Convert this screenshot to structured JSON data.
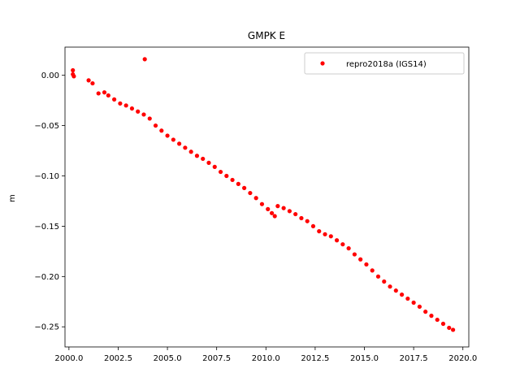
{
  "chart_data": {
    "type": "scatter",
    "title": "GMPK E",
    "xlabel": "",
    "ylabel": "m",
    "xlim": [
      1999.8,
      2020.3
    ],
    "ylim": [
      -0.27,
      0.028
    ],
    "xticks": [
      2000.0,
      2002.5,
      2005.0,
      2007.5,
      2010.0,
      2012.5,
      2015.0,
      2017.5,
      2020.0
    ],
    "xtick_labels": [
      "2000.0",
      "2002.5",
      "2005.0",
      "2007.5",
      "2010.0",
      "2012.5",
      "2015.0",
      "2017.5",
      "2020.0"
    ],
    "yticks": [
      0.0,
      -0.05,
      -0.1,
      -0.15,
      -0.2,
      -0.25
    ],
    "ytick_labels": [
      "0.00",
      "−0.05",
      "−0.10",
      "−0.15",
      "−0.20",
      "−0.25"
    ],
    "grid": false,
    "legend": {
      "placement": "top-right"
    },
    "series": [
      {
        "name": "repro2018a (IGS14)",
        "color": "#ff0000",
        "marker": "circle",
        "points": [
          [
            2000.2,
            0.005
          ],
          [
            2000.2,
            0.001
          ],
          [
            2000.25,
            -0.001
          ],
          [
            2003.85,
            0.016
          ],
          [
            2001.0,
            -0.005
          ],
          [
            2001.2,
            -0.008
          ],
          [
            2001.5,
            -0.018
          ],
          [
            2001.8,
            -0.017
          ],
          [
            2002.0,
            -0.02
          ],
          [
            2002.3,
            -0.024
          ],
          [
            2002.6,
            -0.028
          ],
          [
            2002.9,
            -0.03
          ],
          [
            2003.2,
            -0.033
          ],
          [
            2003.5,
            -0.036
          ],
          [
            2003.8,
            -0.039
          ],
          [
            2004.1,
            -0.043
          ],
          [
            2004.4,
            -0.05
          ],
          [
            2004.7,
            -0.055
          ],
          [
            2005.0,
            -0.06
          ],
          [
            2005.3,
            -0.064
          ],
          [
            2005.6,
            -0.068
          ],
          [
            2005.9,
            -0.072
          ],
          [
            2006.2,
            -0.076
          ],
          [
            2006.5,
            -0.08
          ],
          [
            2006.8,
            -0.083
          ],
          [
            2007.1,
            -0.087
          ],
          [
            2007.4,
            -0.091
          ],
          [
            2007.7,
            -0.096
          ],
          [
            2008.0,
            -0.1
          ],
          [
            2008.3,
            -0.104
          ],
          [
            2008.6,
            -0.108
          ],
          [
            2008.9,
            -0.112
          ],
          [
            2009.2,
            -0.117
          ],
          [
            2009.5,
            -0.122
          ],
          [
            2009.8,
            -0.128
          ],
          [
            2010.1,
            -0.133
          ],
          [
            2010.3,
            -0.137
          ],
          [
            2010.45,
            -0.14
          ],
          [
            2010.6,
            -0.13
          ],
          [
            2010.9,
            -0.132
          ],
          [
            2011.2,
            -0.135
          ],
          [
            2011.5,
            -0.138
          ],
          [
            2011.8,
            -0.142
          ],
          [
            2012.1,
            -0.145
          ],
          [
            2012.4,
            -0.15
          ],
          [
            2012.7,
            -0.155
          ],
          [
            2013.0,
            -0.158
          ],
          [
            2013.3,
            -0.16
          ],
          [
            2013.6,
            -0.164
          ],
          [
            2013.9,
            -0.168
          ],
          [
            2014.2,
            -0.172
          ],
          [
            2014.5,
            -0.178
          ],
          [
            2014.8,
            -0.183
          ],
          [
            2015.1,
            -0.188
          ],
          [
            2015.4,
            -0.194
          ],
          [
            2015.7,
            -0.2
          ],
          [
            2016.0,
            -0.205
          ],
          [
            2016.3,
            -0.21
          ],
          [
            2016.6,
            -0.214
          ],
          [
            2016.9,
            -0.218
          ],
          [
            2017.2,
            -0.222
          ],
          [
            2017.5,
            -0.226
          ],
          [
            2017.8,
            -0.23
          ],
          [
            2018.1,
            -0.235
          ],
          [
            2018.4,
            -0.239
          ],
          [
            2018.7,
            -0.243
          ],
          [
            2019.0,
            -0.247
          ],
          [
            2019.3,
            -0.251
          ],
          [
            2019.5,
            -0.253
          ]
        ]
      }
    ]
  }
}
